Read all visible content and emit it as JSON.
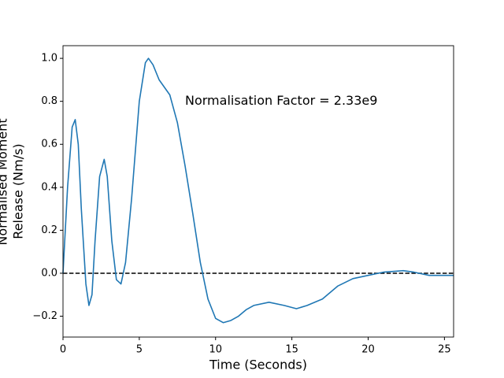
{
  "chart_data": {
    "type": "line",
    "xlabel": "Time (Seconds)",
    "ylabel": [
      "Normalised Moment",
      "Release (Nm/s)"
    ],
    "annotation": {
      "text": "Normalisation Factor = 2.33e9",
      "x": 8,
      "y": 0.8
    },
    "reference_line": {
      "y": 0,
      "color": "#000000"
    },
    "xlim": [
      0,
      25.6
    ],
    "ylim": [
      -0.297,
      1.059
    ],
    "xticks": [
      0,
      5,
      10,
      15,
      20,
      25
    ],
    "yticks": [
      {
        "value": -0.2,
        "label": "−0.2"
      },
      {
        "value": 0,
        "label": "0.0"
      },
      {
        "value": 0.2,
        "label": "0.2"
      },
      {
        "value": 0.4,
        "label": "0.4"
      },
      {
        "value": 0.6,
        "label": "0.6"
      },
      {
        "value": 0.8,
        "label": "0.8"
      },
      {
        "value": 1.0,
        "label": "1.0"
      }
    ],
    "x": [
      0,
      0.3,
      0.6,
      0.8,
      1.0,
      1.2,
      1.5,
      1.7,
      1.9,
      2.1,
      2.4,
      2.7,
      2.9,
      3.2,
      3.5,
      3.8,
      4.1,
      4.5,
      5.0,
      5.4,
      5.6,
      5.9,
      6.3,
      7.0,
      7.5,
      8.0,
      8.5,
      9.0,
      9.5,
      10.0,
      10.5,
      11.0,
      11.5,
      12.0,
      12.5,
      13.5,
      14.5,
      15.3,
      16.0,
      17.0,
      18.0,
      19.0,
      20.0,
      21.0,
      22.3,
      23.0,
      24.0,
      25.6
    ],
    "series": [
      {
        "color": "#1f77b4",
        "values": [
          0,
          0.4,
          0.68,
          0.715,
          0.6,
          0.3,
          -0.05,
          -0.15,
          -0.1,
          0.15,
          0.45,
          0.53,
          0.45,
          0.15,
          -0.03,
          -0.05,
          0.05,
          0.35,
          0.8,
          0.98,
          1.0,
          0.97,
          0.9,
          0.83,
          0.7,
          0.5,
          0.28,
          0.05,
          -0.12,
          -0.21,
          -0.23,
          -0.22,
          -0.2,
          -0.17,
          -0.15,
          -0.135,
          -0.15,
          -0.165,
          -0.15,
          -0.12,
          -0.06,
          -0.025,
          -0.01,
          0.005,
          0.012,
          0.005,
          -0.01,
          -0.01
        ]
      }
    ]
  }
}
